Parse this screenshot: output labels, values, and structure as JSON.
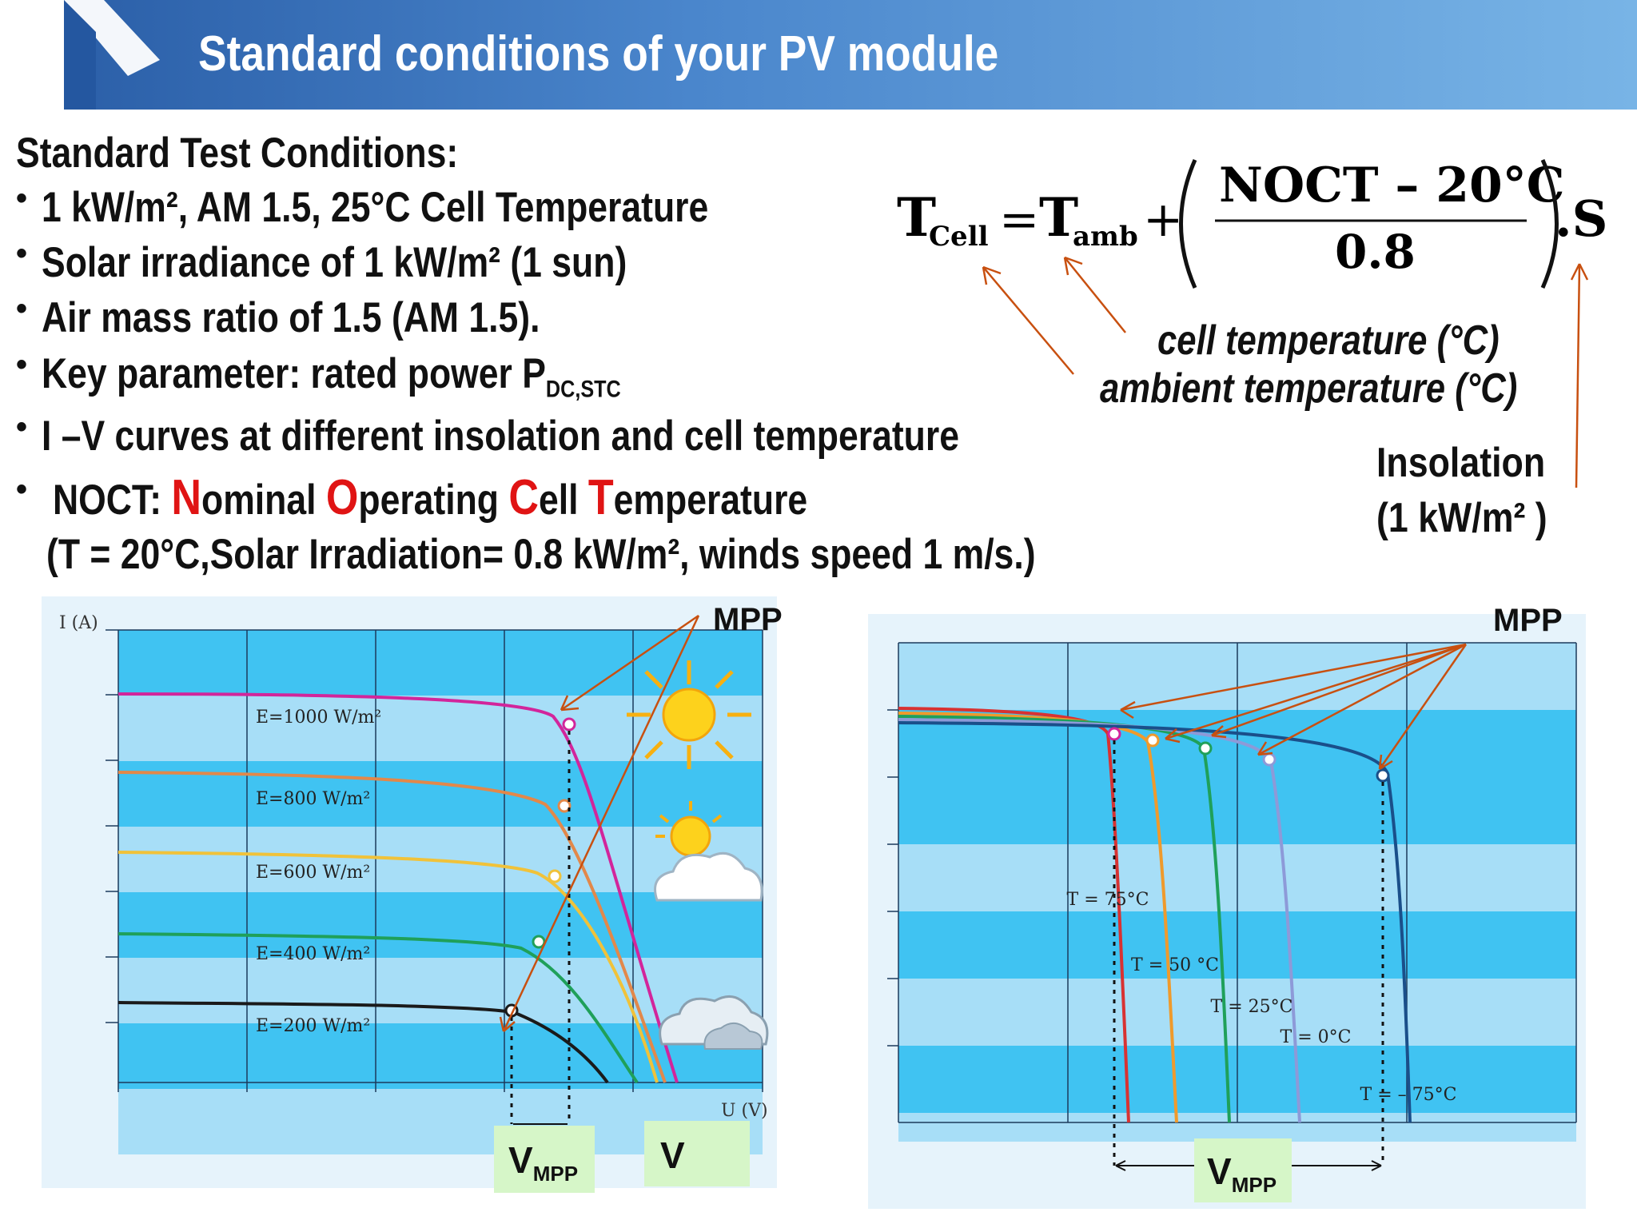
{
  "header": {
    "title": "Standard conditions of your PV module"
  },
  "conditions": {
    "heading": "Standard Test Conditions:",
    "bullet1": "1 kW/m², AM 1.5, 25°C Cell Temperature",
    "bullet2": "Solar irradiance of 1 kW/m² (1 sun)",
    "bullet3": "Air mass ratio of 1.5 (AM 1.5).",
    "bullet4": "Key parameter: rated power P",
    "bullet4_sub": "DC,STC",
    "bullet5": "I –V curves at different insolation and cell temperature",
    "noct_prefix": "NOCT: ",
    "noct_letters": [
      "N",
      "O",
      "C",
      "T"
    ],
    "noct_rest": [
      "ominal ",
      "perating ",
      "ell ",
      "emperature"
    ],
    "noct_detail": "(T = 20°C,Solar Irradiation= 0.8 kW/m², winds speed 1 m/s.)"
  },
  "formula": {
    "t": "T",
    "cell_sub": "Cell",
    "eq": "=",
    "amb_sub": "amb",
    "plus": "+",
    "numerator": "NOCT – 20°C",
    "denominator": "0.8",
    "factor": ".S"
  },
  "annotations": {
    "cell_temp": "cell temperature (°C)",
    "ambient_temp": "ambient temperature (°C)",
    "insolation": "Insolation",
    "insolation_value": "(1 kW/m² )"
  },
  "chart_left": {
    "type": "line",
    "ylabel": "I (A)",
    "xlabel": "U (V)",
    "series": [
      {
        "name": "E=1000 W/m²",
        "color": "#d2259b"
      },
      {
        "name": "E=800 W/m²",
        "color": "#e2884a"
      },
      {
        "name": "E=600 W/m²",
        "color": "#f0c23a"
      },
      {
        "name": "E=400 W/m²",
        "color": "#1fa05a"
      },
      {
        "name": "E=200 W/m²",
        "color": "#1a1a1a"
      }
    ],
    "mpp_label": "MPP",
    "vmpp_label": "V",
    "vmpp_sub": "MPP",
    "v_label": "V"
  },
  "chart_right": {
    "type": "line",
    "series": [
      {
        "name": "T = 75°C",
        "color": "#d83232"
      },
      {
        "name": "T = 50 °C",
        "color": "#ef9a2c"
      },
      {
        "name": "T = 25°C",
        "color": "#1fa05a"
      },
      {
        "name": "T = 0°C",
        "color": "#8d9ad8"
      },
      {
        "name": "T = – 75°C",
        "color": "#1a4f8a"
      }
    ],
    "mpp_label": "MPP",
    "vmpp_label": "V",
    "vmpp_sub": "MPP"
  }
}
